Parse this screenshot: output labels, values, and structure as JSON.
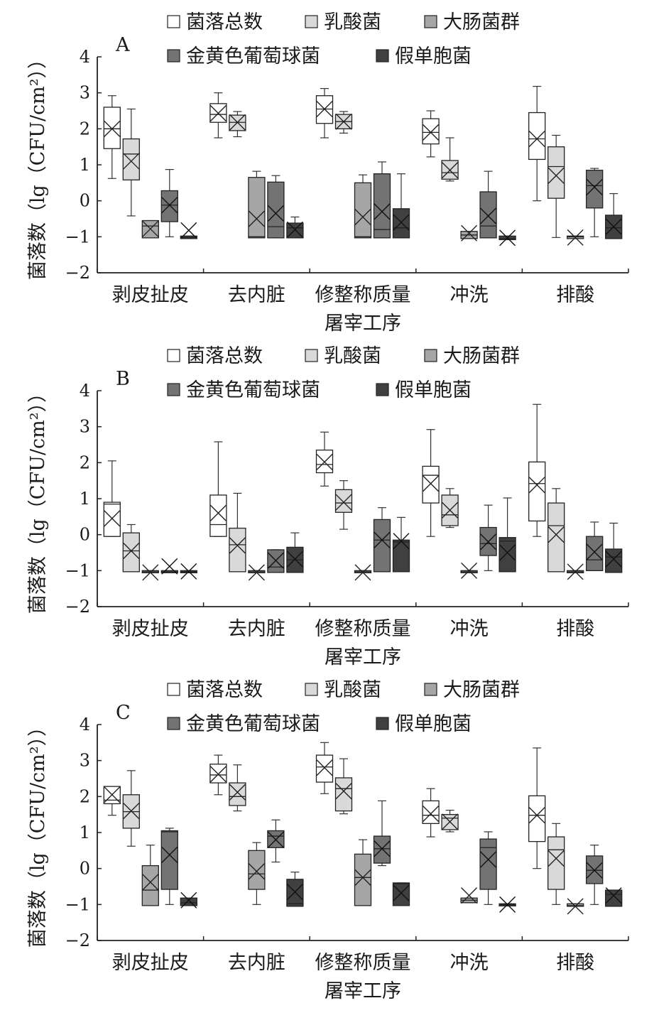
{
  "legend": [
    {
      "name": "菌落总数",
      "color": "#ffffff"
    },
    {
      "name": "乳酸菌",
      "color": "#d9d9d9"
    },
    {
      "name": "大肠菌群",
      "color": "#a6a6a6"
    },
    {
      "name": "金黄色葡萄球菌",
      "color": "#737373"
    },
    {
      "name": "假单胞菌",
      "color": "#404040"
    }
  ],
  "chart_data": [
    {
      "type": "box",
      "panel_label": "A",
      "ylabel": "菌落数（lg（CFU/cm²））",
      "xlabel": "屠宰工序",
      "ylim": [
        -2,
        4
      ],
      "yticks": [
        "−2",
        "−1",
        "0",
        "1",
        "2",
        "3",
        "4"
      ],
      "categories": [
        "剥皮扯皮",
        "去内脏",
        "修整称质量",
        "冲洗",
        "排酸"
      ],
      "series": [
        {
          "name": "菌落总数",
          "boxes": [
            {
              "min": 0.62,
              "q1": 1.45,
              "median": 2.0,
              "q3": 2.6,
              "max": 2.92,
              "mean": 2.0
            },
            {
              "min": 1.75,
              "q1": 2.18,
              "median": 2.4,
              "q3": 2.7,
              "max": 3.0,
              "mean": 2.43
            },
            {
              "min": 1.75,
              "q1": 2.15,
              "median": 2.55,
              "q3": 2.92,
              "max": 3.12,
              "mean": 2.55
            },
            {
              "min": 1.22,
              "q1": 1.58,
              "median": 1.9,
              "q3": 2.28,
              "max": 2.5,
              "mean": 1.9
            },
            {
              "min": 0.0,
              "q1": 1.15,
              "median": 1.72,
              "q3": 2.45,
              "max": 3.18,
              "mean": 1.72
            }
          ]
        },
        {
          "name": "乳酸菌",
          "boxes": [
            {
              "min": -0.42,
              "q1": 0.58,
              "median": 1.3,
              "q3": 1.72,
              "max": 2.55,
              "mean": 1.1
            },
            {
              "min": 1.78,
              "q1": 1.95,
              "median": 2.18,
              "q3": 2.38,
              "max": 2.48,
              "mean": 2.18
            },
            {
              "min": 1.88,
              "q1": 2.0,
              "median": 2.2,
              "q3": 2.4,
              "max": 2.48,
              "mean": 2.2
            },
            {
              "min": 0.55,
              "q1": 0.6,
              "median": 0.78,
              "q3": 1.12,
              "max": 1.75,
              "mean": 0.85
            },
            {
              "min": -1.02,
              "q1": 0.07,
              "median": 0.95,
              "q3": 1.5,
              "max": 1.82,
              "mean": 0.7
            }
          ]
        },
        {
          "name": "大肠菌群",
          "boxes": [
            {
              "min": -1.03,
              "q1": -1.03,
              "median": -0.7,
              "q3": -0.55,
              "max": -0.55,
              "mean": -0.78
            },
            {
              "min": -1.03,
              "q1": -1.03,
              "median": -1.0,
              "q3": 0.65,
              "max": 0.82,
              "mean": -0.5
            },
            {
              "min": -1.03,
              "q1": -1.03,
              "median": -1.0,
              "q3": 0.5,
              "max": 0.72,
              "mean": -0.45
            },
            {
              "min": -1.05,
              "q1": -1.05,
              "median": -0.95,
              "q3": -0.85,
              "max": -0.85,
              "mean": -0.9
            },
            {
              "min": -1.05,
              "q1": -1.05,
              "median": -1.0,
              "q3": -0.98,
              "max": -0.98,
              "mean": -1.02
            }
          ]
        },
        {
          "name": "金黄色葡萄球菌",
          "boxes": [
            {
              "min": -1.0,
              "q1": -0.58,
              "median": -0.12,
              "q3": 0.28,
              "max": 0.87,
              "mean": -0.12
            },
            {
              "min": -1.03,
              "q1": -1.03,
              "median": -0.72,
              "q3": 0.52,
              "max": 0.7,
              "mean": -0.35
            },
            {
              "min": -1.03,
              "q1": -1.03,
              "median": -0.8,
              "q3": 0.75,
              "max": 1.08,
              "mean": -0.3
            },
            {
              "min": -1.03,
              "q1": -1.03,
              "median": -0.7,
              "q3": 0.25,
              "max": 0.82,
              "mean": -0.42
            },
            {
              "min": -1.0,
              "q1": -0.2,
              "median": 0.42,
              "q3": 0.85,
              "max": 0.9,
              "mean": 0.38
            }
          ]
        },
        {
          "name": "假单胞菌",
          "boxes": [
            {
              "min": -1.05,
              "q1": -1.05,
              "median": -1.02,
              "q3": -0.98,
              "max": -0.98,
              "mean": -0.82
            },
            {
              "min": -1.03,
              "q1": -1.03,
              "median": -0.75,
              "q3": -0.62,
              "max": -0.45,
              "mean": -0.8
            },
            {
              "min": -1.03,
              "q1": -1.03,
              "median": -0.75,
              "q3": -0.22,
              "max": 0.75,
              "mean": -0.6
            },
            {
              "min": -1.08,
              "q1": -1.08,
              "median": -1.05,
              "q3": -0.98,
              "max": -0.98,
              "mean": -1.03
            },
            {
              "min": -1.05,
              "q1": -1.05,
              "median": -0.75,
              "q3": -0.4,
              "max": 0.2,
              "mean": -0.72
            }
          ]
        }
      ]
    },
    {
      "type": "box",
      "panel_label": "B",
      "ylabel": "菌落数（lg（CFU/cm²））",
      "xlabel": "屠宰工序",
      "ylim": [
        -2,
        4
      ],
      "yticks": [
        "−2",
        "−1",
        "0",
        "1",
        "2",
        "3",
        "4"
      ],
      "categories": [
        "剥皮扯皮",
        "去内脏",
        "修整称质量",
        "冲洗",
        "排酸"
      ],
      "series": [
        {
          "name": "菌落总数",
          "boxes": [
            {
              "min": -0.05,
              "q1": -0.05,
              "median": 0.85,
              "q3": 0.9,
              "max": 2.05,
              "mean": 0.45
            },
            {
              "min": -0.05,
              "q1": -0.05,
              "median": 0.28,
              "q3": 1.1,
              "max": 2.58,
              "mean": 0.6
            },
            {
              "min": 1.35,
              "q1": 1.72,
              "median": 1.95,
              "q3": 2.35,
              "max": 2.85,
              "mean": 2.02
            },
            {
              "min": -0.05,
              "q1": 0.88,
              "median": 1.65,
              "q3": 1.9,
              "max": 2.92,
              "mean": 1.42
            },
            {
              "min": -0.05,
              "q1": 0.38,
              "median": 1.42,
              "q3": 2.02,
              "max": 3.62,
              "mean": 1.38
            }
          ]
        },
        {
          "name": "乳酸菌",
          "boxes": [
            {
              "min": -1.03,
              "q1": -1.03,
              "median": -0.45,
              "q3": 0.05,
              "max": 0.28,
              "mean": -0.45
            },
            {
              "min": -1.03,
              "q1": -1.03,
              "median": -0.28,
              "q3": 0.18,
              "max": 1.15,
              "mean": -0.3
            },
            {
              "min": 0.15,
              "q1": 0.62,
              "median": 0.88,
              "q3": 1.25,
              "max": 1.5,
              "mean": 0.9
            },
            {
              "min": 0.2,
              "q1": 0.25,
              "median": 0.55,
              "q3": 1.1,
              "max": 1.28,
              "mean": 0.68
            },
            {
              "min": -1.03,
              "q1": -1.03,
              "median": 0.25,
              "q3": 0.88,
              "max": 1.28,
              "mean": 0.0
            }
          ]
        },
        {
          "name": "大肠菌群",
          "boxes": [
            {
              "min": -1.05,
              "q1": -1.05,
              "median": -1.03,
              "q3": -1.0,
              "max": -1.0,
              "mean": -1.05
            },
            {
              "min": -1.05,
              "q1": -1.05,
              "median": -1.03,
              "q3": -1.0,
              "max": -1.0,
              "mean": -1.05
            },
            {
              "min": -1.05,
              "q1": -1.05,
              "median": -1.03,
              "q3": -1.0,
              "max": -1.0,
              "mean": -1.05
            },
            {
              "min": -1.05,
              "q1": -1.05,
              "median": -1.03,
              "q3": -1.0,
              "max": -1.0,
              "mean": -1.0
            },
            {
              "min": -1.05,
              "q1": -1.05,
              "median": -1.03,
              "q3": -1.0,
              "max": -1.0,
              "mean": -1.03
            }
          ]
        },
        {
          "name": "金黄色葡萄球菌",
          "boxes": [
            {
              "min": -1.05,
              "q1": -1.05,
              "median": -1.03,
              "q3": -1.0,
              "max": -1.0,
              "mean": -0.88
            },
            {
              "min": -1.05,
              "q1": -1.05,
              "median": -0.9,
              "q3": -0.42,
              "max": -0.42,
              "mean": -0.72
            },
            {
              "min": -1.03,
              "q1": -1.03,
              "median": -0.15,
              "q3": 0.42,
              "max": 0.75,
              "mean": -0.15
            },
            {
              "min": -1.0,
              "q1": -0.58,
              "median": -0.25,
              "q3": 0.2,
              "max": 0.82,
              "mean": -0.2
            },
            {
              "min": -1.0,
              "q1": -1.0,
              "median": -0.7,
              "q3": -0.05,
              "max": 0.35,
              "mean": -0.48
            }
          ]
        },
        {
          "name": "假单胞菌",
          "boxes": [
            {
              "min": -1.05,
              "q1": -1.05,
              "median": -1.03,
              "q3": -1.0,
              "max": -1.0,
              "mean": -1.02
            },
            {
              "min": -1.05,
              "q1": -1.05,
              "median": -0.7,
              "q3": -0.35,
              "max": 0.05,
              "mean": -0.68
            },
            {
              "min": -1.03,
              "q1": -1.03,
              "median": -0.2,
              "q3": -0.15,
              "max": 0.48,
              "mean": -0.18
            },
            {
              "min": -1.03,
              "q1": -1.03,
              "median": -0.18,
              "q3": -0.08,
              "max": 1.02,
              "mean": -0.5
            },
            {
              "min": -1.05,
              "q1": -1.05,
              "median": -0.62,
              "q3": -0.4,
              "max": 0.32,
              "mean": -0.68
            }
          ]
        }
      ]
    },
    {
      "type": "box",
      "panel_label": "C",
      "ylabel": "菌落数（lg（CFU/cm²））",
      "xlabel": "屠宰工序",
      "ylim": [
        -2,
        4
      ],
      "yticks": [
        "−2",
        "−1",
        "0",
        "1",
        "2",
        "3",
        "4"
      ],
      "categories": [
        "剥皮扯皮",
        "去内脏",
        "修整称质量",
        "冲洗",
        "排酸"
      ],
      "series": [
        {
          "name": "菌落总数",
          "boxes": [
            {
              "min": 1.48,
              "q1": 1.8,
              "median": 1.9,
              "q3": 2.28,
              "max": 2.28,
              "mean": 2.05
            },
            {
              "min": 2.05,
              "q1": 2.38,
              "median": 2.6,
              "q3": 2.9,
              "max": 3.15,
              "mean": 2.62
            },
            {
              "min": 2.08,
              "q1": 2.4,
              "median": 2.82,
              "q3": 3.15,
              "max": 3.5,
              "mean": 2.8
            },
            {
              "min": 0.88,
              "q1": 1.25,
              "median": 1.48,
              "q3": 1.88,
              "max": 2.22,
              "mean": 1.52
            },
            {
              "min": 0.0,
              "q1": 0.75,
              "median": 1.48,
              "q3": 2.02,
              "max": 3.35,
              "mean": 1.48
            }
          ]
        },
        {
          "name": "乳酸菌",
          "boxes": [
            {
              "min": 0.62,
              "q1": 1.12,
              "median": 1.58,
              "q3": 2.05,
              "max": 2.72,
              "mean": 1.6
            },
            {
              "min": 1.6,
              "q1": 1.75,
              "median": 2.0,
              "q3": 2.38,
              "max": 2.88,
              "mean": 2.12
            },
            {
              "min": 1.52,
              "q1": 1.6,
              "median": 2.22,
              "q3": 2.52,
              "max": 3.05,
              "mean": 2.15
            },
            {
              "min": 1.02,
              "q1": 1.08,
              "median": 1.4,
              "q3": 1.5,
              "max": 1.62,
              "mean": 1.3
            },
            {
              "min": -1.0,
              "q1": -0.58,
              "median": 0.52,
              "q3": 0.88,
              "max": 1.25,
              "mean": 0.28
            }
          ]
        },
        {
          "name": "大肠菌群",
          "boxes": [
            {
              "min": -1.03,
              "q1": -1.03,
              "median": -0.6,
              "q3": 0.08,
              "max": 0.65,
              "mean": -0.38
            },
            {
              "min": -1.0,
              "q1": -0.58,
              "median": -0.15,
              "q3": 0.5,
              "max": 0.72,
              "mean": -0.08
            },
            {
              "min": -1.03,
              "q1": -1.03,
              "median": -0.25,
              "q3": 0.4,
              "max": 0.8,
              "mean": -0.25
            },
            {
              "min": -0.95,
              "q1": -0.95,
              "median": -0.88,
              "q3": -0.82,
              "max": -0.82,
              "mean": -0.75
            },
            {
              "min": -1.05,
              "q1": -1.05,
              "median": -1.03,
              "q3": -0.98,
              "max": -0.98,
              "mean": -1.05
            }
          ]
        },
        {
          "name": "金黄色葡萄球菌",
          "boxes": [
            {
              "min": -1.0,
              "q1": -0.58,
              "median": 1.02,
              "q3": 1.05,
              "max": 1.12,
              "mean": 0.38
            },
            {
              "min": 0.18,
              "q1": 0.58,
              "median": 0.9,
              "q3": 1.05,
              "max": 1.35,
              "mean": 0.8
            },
            {
              "min": 0.08,
              "q1": 0.15,
              "median": 0.55,
              "q3": 0.9,
              "max": 1.88,
              "mean": 0.55
            },
            {
              "min": -1.0,
              "q1": -0.58,
              "median": 0.58,
              "q3": 0.82,
              "max": 1.02,
              "mean": 0.25
            },
            {
              "min": -1.0,
              "q1": -0.42,
              "median": -0.05,
              "q3": 0.35,
              "max": 0.65,
              "mean": -0.05
            }
          ]
        },
        {
          "name": "假单胞菌",
          "boxes": [
            {
              "min": -1.03,
              "q1": -1.03,
              "median": -0.95,
              "q3": -0.82,
              "max": -0.82,
              "mean": -0.88
            },
            {
              "min": -1.05,
              "q1": -1.05,
              "median": -0.98,
              "q3": -0.3,
              "max": -0.1,
              "mean": -0.65
            },
            {
              "min": -1.03,
              "q1": -1.03,
              "median": -0.42,
              "q3": -0.4,
              "max": -0.4,
              "mean": -0.68
            },
            {
              "min": -1.03,
              "q1": -1.03,
              "median": -1.0,
              "q3": -0.98,
              "max": -0.98,
              "mean": -1.0
            },
            {
              "min": -1.05,
              "q1": -1.05,
              "median": -0.72,
              "q3": -0.6,
              "max": -0.6,
              "mean": -0.75
            }
          ]
        }
      ]
    }
  ]
}
